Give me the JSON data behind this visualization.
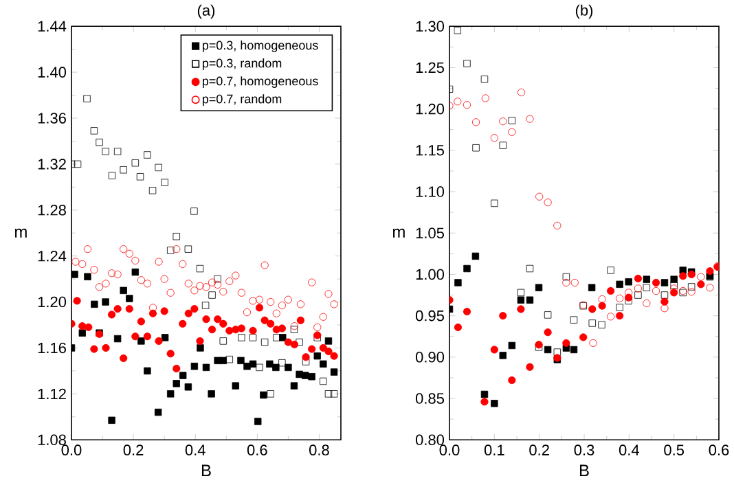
{
  "chart_data": [
    {
      "type": "scatter",
      "title": "(a)",
      "xlabel": "B",
      "ylabel": "m",
      "legend": "top right",
      "xlim": [
        0,
        0.87
      ],
      "ylim": [
        1.08,
        1.44
      ],
      "xticks": [
        {
          "value": 0,
          "label": "0.0"
        },
        {
          "value": 0.2,
          "label": "0.2"
        },
        {
          "value": 0.4,
          "label": "0.4"
        },
        {
          "value": 0.6,
          "label": "0.6"
        },
        {
          "value": 0.8,
          "label": "0.8"
        }
      ],
      "yticks": [
        {
          "value": 1.08,
          "label": "1.08"
        },
        {
          "value": 1.12,
          "label": "1.12"
        },
        {
          "value": 1.16,
          "label": "1.16"
        },
        {
          "value": 1.2,
          "label": "1.20"
        },
        {
          "value": 1.24,
          "label": "1.24"
        },
        {
          "value": 1.28,
          "label": "1.28"
        },
        {
          "value": 1.32,
          "label": "1.32"
        },
        {
          "value": 1.36,
          "label": "1.36"
        },
        {
          "value": 1.4,
          "label": "1.40"
        },
        {
          "value": 1.44,
          "label": "1.44"
        }
      ],
      "series": [
        {
          "name": "p=0.3, homogeneous",
          "color": "#000000",
          "marker": "square",
          "x": [
            0,
            0.01,
            0.035,
            0.052,
            0.074,
            0.09,
            0.11,
            0.13,
            0.149,
            0.168,
            0.187,
            0.206,
            0.225,
            0.245,
            0.28,
            0.302,
            0.32,
            0.339,
            0.36,
            0.377,
            0.397,
            0.416,
            0.435,
            0.452,
            0.472,
            0.49,
            0.53,
            0.547,
            0.567,
            0.586,
            0.602,
            0.62,
            0.64,
            0.66,
            0.682,
            0.7,
            0.719,
            0.736,
            0.755,
            0.776,
            0.794,
            0.813,
            0.83,
            0.848
          ],
          "values": [
            1.16,
            1.224,
            1.173,
            1.222,
            1.198,
            1.173,
            1.2,
            1.097,
            1.168,
            1.21,
            1.203,
            1.226,
            1.166,
            1.14,
            1.104,
            1.169,
            1.12,
            1.129,
            1.136,
            1.126,
            1.144,
            1.16,
            1.143,
            1.12,
            1.149,
            1.149,
            1.127,
            1.149,
            1.144,
            1.146,
            1.096,
            1.119,
            1.146,
            1.143,
            1.169,
            1.143,
            1.127,
            1.137,
            1.136,
            1.135,
            1.153,
            1.146,
            1.166,
            1.139
          ]
        },
        {
          "name": "p=0.3, random",
          "color": "#000000",
          "marker": "square",
          "x": [
            0,
            0.02,
            0.05,
            0.073,
            0.09,
            0.11,
            0.131,
            0.149,
            0.168,
            0.206,
            0.222,
            0.245,
            0.262,
            0.281,
            0.301,
            0.32,
            0.339,
            0.377,
            0.396,
            0.415,
            0.433,
            0.454,
            0.472,
            0.49,
            0.51,
            0.549,
            0.586,
            0.607,
            0.624,
            0.643,
            0.662,
            0.68,
            0.719,
            0.736,
            0.757,
            0.794,
            0.813,
            0.83,
            0.848
          ],
          "values": [
            1.32,
            1.32,
            1.377,
            1.349,
            1.339,
            1.331,
            1.31,
            1.331,
            1.315,
            1.321,
            1.309,
            1.328,
            1.297,
            1.317,
            1.304,
            1.245,
            1.257,
            1.246,
            1.279,
            1.229,
            1.197,
            1.206,
            1.22,
            1.166,
            1.15,
            1.169,
            1.169,
            1.143,
            1.165,
            1.12,
            1.169,
            1.147,
            1.176,
            1.165,
            1.148,
            1.169,
            1.131,
            1.12,
            1.12
          ]
        },
        {
          "name": "p=0.7, homogeneous",
          "color": "#ff0000",
          "marker": "circle",
          "x": [
            0,
            0.018,
            0.035,
            0.055,
            0.073,
            0.09,
            0.111,
            0.13,
            0.149,
            0.168,
            0.187,
            0.206,
            0.225,
            0.245,
            0.263,
            0.282,
            0.3,
            0.32,
            0.339,
            0.359,
            0.378,
            0.397,
            0.415,
            0.435,
            0.454,
            0.472,
            0.49,
            0.51,
            0.53,
            0.549,
            0.586,
            0.607,
            0.624,
            0.643,
            0.662,
            0.68,
            0.7,
            0.72,
            0.74,
            0.757,
            0.776,
            0.794,
            0.813,
            0.83,
            0.848
          ],
          "values": [
            1.181,
            1.201,
            1.179,
            1.178,
            1.159,
            1.172,
            1.16,
            1.189,
            1.194,
            1.151,
            1.194,
            1.17,
            1.183,
            1.17,
            1.19,
            1.166,
            1.192,
            1.155,
            1.142,
            1.181,
            1.19,
            1.194,
            1.166,
            1.185,
            1.176,
            1.185,
            1.181,
            1.175,
            1.176,
            1.177,
            1.175,
            1.195,
            1.184,
            1.181,
            1.176,
            1.177,
            1.165,
            1.163,
            1.184,
            1.152,
            1.159,
            1.171,
            1.16,
            1.157,
            1.153
          ]
        },
        {
          "name": "p=0.7, random",
          "color": "#ff0000",
          "marker": "circle",
          "x": [
            0.013,
            0.035,
            0.052,
            0.073,
            0.09,
            0.111,
            0.13,
            0.149,
            0.168,
            0.187,
            0.206,
            0.225,
            0.245,
            0.263,
            0.282,
            0.3,
            0.32,
            0.339,
            0.359,
            0.378,
            0.397,
            0.415,
            0.435,
            0.454,
            0.472,
            0.49,
            0.51,
            0.53,
            0.549,
            0.567,
            0.586,
            0.607,
            0.624,
            0.643,
            0.662,
            0.68,
            0.7,
            0.72,
            0.74,
            0.776,
            0.794,
            0.813,
            0.83,
            0.848
          ],
          "values": [
            1.235,
            1.233,
            1.246,
            1.228,
            1.213,
            1.216,
            1.225,
            1.224,
            1.246,
            1.242,
            1.236,
            1.219,
            1.216,
            1.195,
            1.235,
            1.22,
            1.208,
            1.246,
            1.233,
            1.216,
            1.21,
            1.214,
            1.213,
            1.217,
            1.215,
            1.209,
            1.218,
            1.223,
            1.208,
            1.191,
            1.201,
            1.202,
            1.232,
            1.2,
            1.19,
            1.197,
            1.202,
            1.179,
            1.198,
            1.217,
            1.178,
            1.187,
            1.207,
            1.198
          ]
        }
      ]
    },
    {
      "type": "scatter",
      "title": "(b)",
      "xlabel": "B",
      "ylabel": "m",
      "xlim": [
        0,
        0.6
      ],
      "ylim": [
        0.8,
        1.3
      ],
      "xticks": [
        {
          "value": 0,
          "label": "0.0"
        },
        {
          "value": 0.1,
          "label": "0.1"
        },
        {
          "value": 0.2,
          "label": "0.2"
        },
        {
          "value": 0.3,
          "label": "0.3"
        },
        {
          "value": 0.4,
          "label": "0.4"
        },
        {
          "value": 0.5,
          "label": "0.5"
        },
        {
          "value": 0.6,
          "label": "0.6"
        }
      ],
      "yticks": [
        {
          "value": 0.8,
          "label": "0.80"
        },
        {
          "value": 0.85,
          "label": "0.85"
        },
        {
          "value": 0.9,
          "label": "0.90"
        },
        {
          "value": 0.95,
          "label": "0.95"
        },
        {
          "value": 1.0,
          "label": "1.00"
        },
        {
          "value": 1.05,
          "label": "1.05"
        },
        {
          "value": 1.1,
          "label": "1.10"
        },
        {
          "value": 1.15,
          "label": "1.15"
        },
        {
          "value": 1.2,
          "label": "1.20"
        },
        {
          "value": 1.25,
          "label": "1.25"
        },
        {
          "value": 1.3,
          "label": "1.30"
        }
      ],
      "series": [
        {
          "color": "#000000",
          "marker": "square",
          "x": [
            0,
            0.019,
            0.039,
            0.058,
            0.078,
            0.1,
            0.119,
            0.139,
            0.159,
            0.179,
            0.199,
            0.219,
            0.24,
            0.26,
            0.277,
            0.317,
            0.379,
            0.399,
            0.439,
            0.479,
            0.5,
            0.52,
            0.539,
            0.58
          ],
          "values": [
            0.958,
            0.99,
            1.007,
            1.022,
            0.855,
            0.844,
            0.902,
            0.914,
            0.969,
            0.969,
            0.984,
            0.909,
            0.897,
            0.911,
            0.909,
            0.984,
            0.988,
            0.991,
            0.994,
            0.99,
            0.994,
            1.005,
            1.003,
            0.998
          ]
        },
        {
          "color": "#000000",
          "marker": "square",
          "x": [
            0,
            0.018,
            0.039,
            0.059,
            0.078,
            0.1,
            0.119,
            0.139,
            0.159,
            0.179,
            0.199,
            0.219,
            0.24,
            0.26,
            0.277,
            0.298,
            0.318,
            0.339,
            0.359,
            0.379,
            0.399,
            0.42,
            0.439,
            0.479,
            0.5,
            0.52,
            0.539,
            0.58
          ],
          "values": [
            1.224,
            1.295,
            1.255,
            1.153,
            1.236,
            1.086,
            1.156,
            1.186,
            0.978,
            1.007,
            0.912,
            0.951,
            0.906,
            0.997,
            0.945,
            0.962,
            0.941,
            0.939,
            1.005,
            0.96,
            0.968,
            0.975,
            0.984,
            0.975,
            0.987,
            0.978,
            0.985,
            0.997
          ]
        },
        {
          "color": "#ff0000",
          "marker": "circle",
          "x": [
            0,
            0.019,
            0.039,
            0.078,
            0.1,
            0.119,
            0.139,
            0.159,
            0.179,
            0.199,
            0.219,
            0.24,
            0.26,
            0.298,
            0.318,
            0.34,
            0.359,
            0.379,
            0.399,
            0.42,
            0.46,
            0.479,
            0.5,
            0.52,
            0.539,
            0.56,
            0.58,
            0.597
          ],
          "values": [
            0.969,
            0.936,
            0.955,
            0.846,
            0.909,
            0.95,
            0.872,
            0.958,
            0.888,
            0.915,
            0.93,
            0.899,
            0.917,
            0.924,
            0.958,
            0.962,
            0.98,
            0.95,
            0.972,
            0.995,
            0.99,
            0.967,
            0.978,
            0.998,
            1.0,
            0.988,
            1.004,
            1.009
          ]
        },
        {
          "color": "#ff0000",
          "marker": "circle",
          "x": [
            0,
            0.018,
            0.039,
            0.059,
            0.08,
            0.1,
            0.119,
            0.139,
            0.16,
            0.179,
            0.2,
            0.219,
            0.24,
            0.26,
            0.279,
            0.298,
            0.32,
            0.34,
            0.359,
            0.379,
            0.399,
            0.42,
            0.439,
            0.46,
            0.479,
            0.5,
            0.52,
            0.539,
            0.56,
            0.58,
            0.597
          ],
          "values": [
            1.204,
            1.209,
            1.205,
            1.184,
            1.213,
            1.165,
            1.185,
            1.172,
            1.22,
            1.188,
            1.094,
            1.087,
            1.059,
            0.99,
            0.99,
            0.963,
            0.917,
            0.97,
            0.949,
            0.971,
            0.978,
            0.983,
            0.965,
            0.98,
            0.959,
            0.983,
            0.98,
            0.979,
            0.997,
            0.984,
            1.01
          ]
        }
      ]
    }
  ]
}
